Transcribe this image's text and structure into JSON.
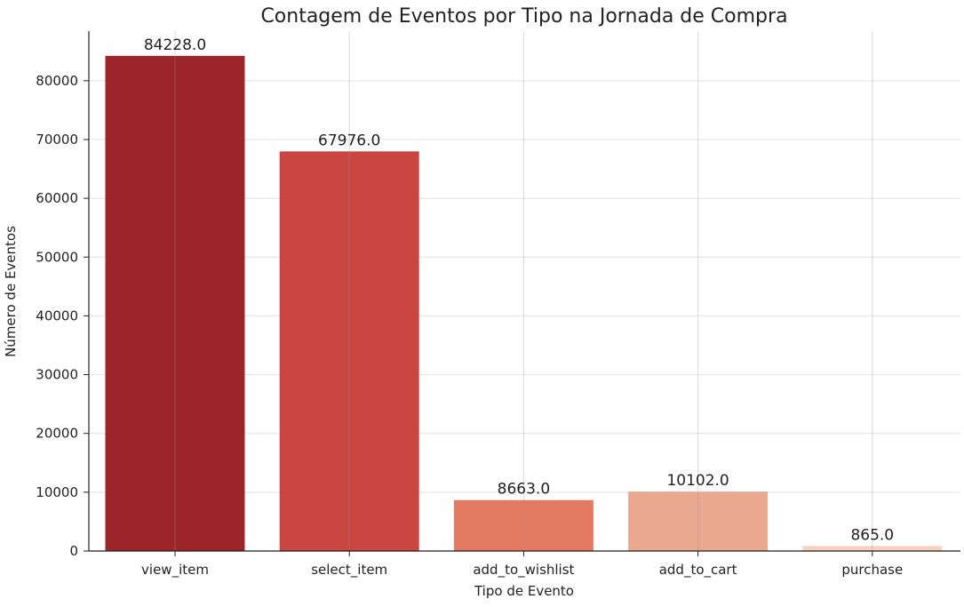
{
  "chart_data": {
    "type": "bar",
    "title": "Contagem de Eventos por Tipo na Jornada de Compra",
    "xlabel": "Tipo de Evento",
    "ylabel": "Número de Eventos",
    "categories": [
      "view_item",
      "select_item",
      "add_to_wishlist",
      "add_to_cart",
      "purchase"
    ],
    "values": [
      84228.0,
      67976.0,
      8663.0,
      10102.0,
      865.0
    ],
    "data_labels": [
      "84228.0",
      "67976.0",
      "8663.0",
      "10102.0",
      "865.0"
    ],
    "bar_colors": [
      "#9b252a",
      "#ca4640",
      "#e57a62",
      "#eba891",
      "#f8d3c0"
    ],
    "ylim": [
      0,
      88440
    ],
    "yticks": [
      0,
      10000,
      20000,
      30000,
      40000,
      50000,
      60000,
      70000,
      80000
    ],
    "ytick_labels": [
      "0",
      "10000",
      "20000",
      "30000",
      "40000",
      "50000",
      "60000",
      "70000",
      "80000"
    ],
    "grid": true,
    "legend": "none"
  }
}
